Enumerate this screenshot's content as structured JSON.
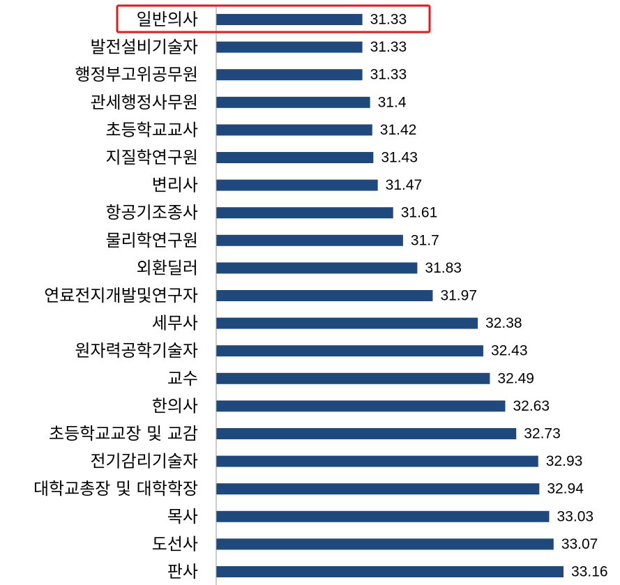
{
  "chart_data": {
    "type": "bar",
    "orientation": "horizontal",
    "categories": [
      "일반의사",
      "발전설비기술자",
      "행정부고위공무원",
      "관세행정사무원",
      "초등학교교사",
      "지질학연구원",
      "변리사",
      "항공기조종사",
      "물리학연구원",
      "외환딜러",
      "연료전지개발및연구자",
      "세무사",
      "원자력공학기술자",
      "교수",
      "한의사",
      "초등학교교장 및 교감",
      "전기감리기술자",
      "대학교총장 및 대학학장",
      "목사",
      "도선사",
      "판사"
    ],
    "values": [
      31.33,
      31.33,
      31.33,
      31.4,
      31.42,
      31.43,
      31.47,
      31.61,
      31.7,
      31.83,
      31.97,
      32.38,
      32.43,
      32.49,
      32.63,
      32.73,
      32.93,
      32.94,
      33.03,
      33.07,
      33.16
    ],
    "value_labels": [
      "31.33",
      "31.33",
      "31.33",
      "31.4",
      "31.42",
      "31.43",
      "31.47",
      "31.61",
      "31.7",
      "31.83",
      "31.97",
      "32.38",
      "32.43",
      "32.49",
      "32.63",
      "32.73",
      "32.93",
      "32.94",
      "33.03",
      "33.07",
      "33.16"
    ],
    "xlim": [
      30,
      33.16
    ],
    "grid": false,
    "legend": "none",
    "highlighted_category": "일반의사"
  },
  "colors": {
    "bar": "#1f497d",
    "highlight_box": "#e01b1b",
    "axis": "#9a9a9a",
    "text": "#000000",
    "background": "#ffffff"
  }
}
